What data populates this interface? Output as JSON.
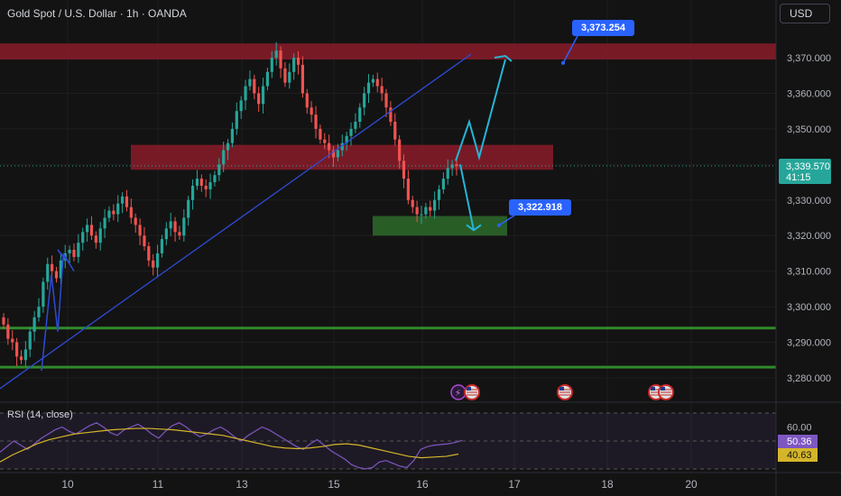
{
  "header": {
    "title": "Gold Spot / U.S. Dollar · 1h · OANDA",
    "currency_button": "USD"
  },
  "price_axis": {
    "ticks": [
      "3,370.000",
      "3,360.000",
      "3,350.000",
      "3,340.000",
      "3,330.000",
      "3,320.000",
      "3,310.000",
      "3,300.000",
      "3,290.000",
      "3,280.000"
    ],
    "current_price": "3,339.570",
    "countdown": "41:15"
  },
  "time_axis": {
    "ticks": [
      "10",
      "11",
      "13",
      "15",
      "16",
      "17",
      "18",
      "20"
    ]
  },
  "annotations": {
    "upper_target": "3,373.254",
    "lower_target": "3,322.918"
  },
  "rsi_panel": {
    "label": "RSI (14, close)",
    "levels": [
      "60.00"
    ],
    "rsi_value": "50.36",
    "ma_value": "40.63"
  },
  "colors": {
    "background": "#131313",
    "up_candle": "#26a69a",
    "down_candle": "#ef5350",
    "resistance_zone": "#8b1c2a",
    "support_zone": "#2e6b2a",
    "trendline": "#2e4bd8",
    "projection_arrow": "#26b5d6",
    "callout": "#2962ff",
    "rsi_line": "#7e57c2",
    "rsi_ma": "#d4b52a"
  },
  "chart_data": {
    "type": "candlestick",
    "symbol": "XAUUSD",
    "timeframe": "1h",
    "ylim": [
      3276,
      3378
    ],
    "series": [
      {
        "values": [
          3295,
          3291,
          3290,
          3286,
          3285,
          3288,
          3293,
          3297,
          3300,
          3307,
          3312,
          3310,
          3308,
          3313,
          3315,
          3316,
          3314,
          3318,
          3321,
          3323,
          3320,
          3318,
          3322,
          3325,
          3327,
          3326,
          3329,
          3331,
          3328,
          3325,
          3323,
          3320,
          3317,
          3313,
          3311,
          3315,
          3319,
          3322,
          3324,
          3321,
          3320,
          3325,
          3330,
          3334,
          3336,
          3334,
          3333,
          3335,
          3337,
          3340,
          3344,
          3346,
          3350,
          3355,
          3358,
          3362,
          3364,
          3360,
          3357,
          3362,
          3366,
          3370,
          3372,
          3367,
          3363,
          3366,
          3370,
          3368,
          3360,
          3356,
          3354,
          3350,
          3347,
          3346,
          3344,
          3342,
          3344,
          3346,
          3348,
          3350,
          3352,
          3356,
          3360,
          3363,
          3364,
          3362,
          3360,
          3356,
          3352,
          3347,
          3341,
          3336,
          3330,
          3328,
          3326,
          3326,
          3328,
          3327,
          3330,
          3333,
          3336,
          3339,
          3340,
          3339.57
        ]
      }
    ],
    "zones": [
      {
        "kind": "resistance",
        "from": 3369.5,
        "to": 3374
      },
      {
        "kind": "resistance",
        "from": 3338.5,
        "to": 3345.5
      },
      {
        "kind": "support",
        "from": 3320,
        "to": 3325.5
      }
    ],
    "horizontal_lines": [
      3294,
      3283
    ],
    "targets": [
      3373.254,
      3322.918
    ],
    "rsi": {
      "ylim": [
        30,
        70
      ],
      "values": [
        42,
        46,
        50,
        47,
        44,
        48,
        52,
        55,
        58,
        60,
        57,
        55,
        58,
        61,
        63,
        60,
        56,
        54,
        58,
        60,
        62,
        59,
        55,
        52,
        57,
        61,
        63,
        60,
        56,
        53,
        55,
        58,
        60,
        57,
        53,
        50,
        54,
        57,
        60,
        58,
        55,
        52,
        49,
        46,
        44,
        48,
        51,
        47,
        43,
        40,
        37,
        33,
        31,
        30,
        31,
        35,
        36,
        34,
        32,
        31,
        36,
        44,
        46,
        47,
        47.5,
        48,
        49,
        50.36
      ],
      "ma": [
        35,
        40,
        44,
        48,
        51,
        53,
        55,
        56,
        57,
        58,
        58.5,
        59,
        59,
        58.5,
        58,
        57,
        56,
        55,
        54,
        52,
        50,
        48,
        46,
        45,
        44.5,
        45,
        46,
        47.5,
        48,
        47,
        45,
        43,
        41,
        39,
        38,
        38.5,
        39,
        40.63
      ]
    }
  }
}
